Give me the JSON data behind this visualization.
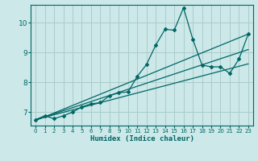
{
  "xlabel": "Humidex (Indice chaleur)",
  "bg_color": "#cce8e8",
  "grid_color": "#aacccc",
  "line_color": "#006666",
  "xlim": [
    -0.5,
    23.5
  ],
  "ylim": [
    6.55,
    10.6
  ],
  "yticks": [
    7,
    8,
    9,
    10
  ],
  "xticks": [
    0,
    1,
    2,
    3,
    4,
    5,
    6,
    7,
    8,
    9,
    10,
    11,
    12,
    13,
    14,
    15,
    16,
    17,
    18,
    19,
    20,
    21,
    22,
    23
  ],
  "data_x": [
    0,
    1,
    2,
    3,
    4,
    5,
    6,
    7,
    8,
    9,
    10,
    11,
    12,
    13,
    14,
    15,
    16,
    17,
    18,
    19,
    20,
    21,
    22,
    23
  ],
  "data_y": [
    6.75,
    6.88,
    6.78,
    6.88,
    7.0,
    7.18,
    7.28,
    7.32,
    7.55,
    7.65,
    7.68,
    8.2,
    8.6,
    9.25,
    9.78,
    9.75,
    10.5,
    9.45,
    8.58,
    8.52,
    8.52,
    8.3,
    8.78,
    9.62
  ],
  "line1_x": [
    0,
    23
  ],
  "line1_y": [
    6.75,
    8.62
  ],
  "line2_x": [
    0,
    23
  ],
  "line2_y": [
    6.72,
    9.62
  ],
  "line3_x": [
    0,
    23
  ],
  "line3_y": [
    6.74,
    9.1
  ]
}
